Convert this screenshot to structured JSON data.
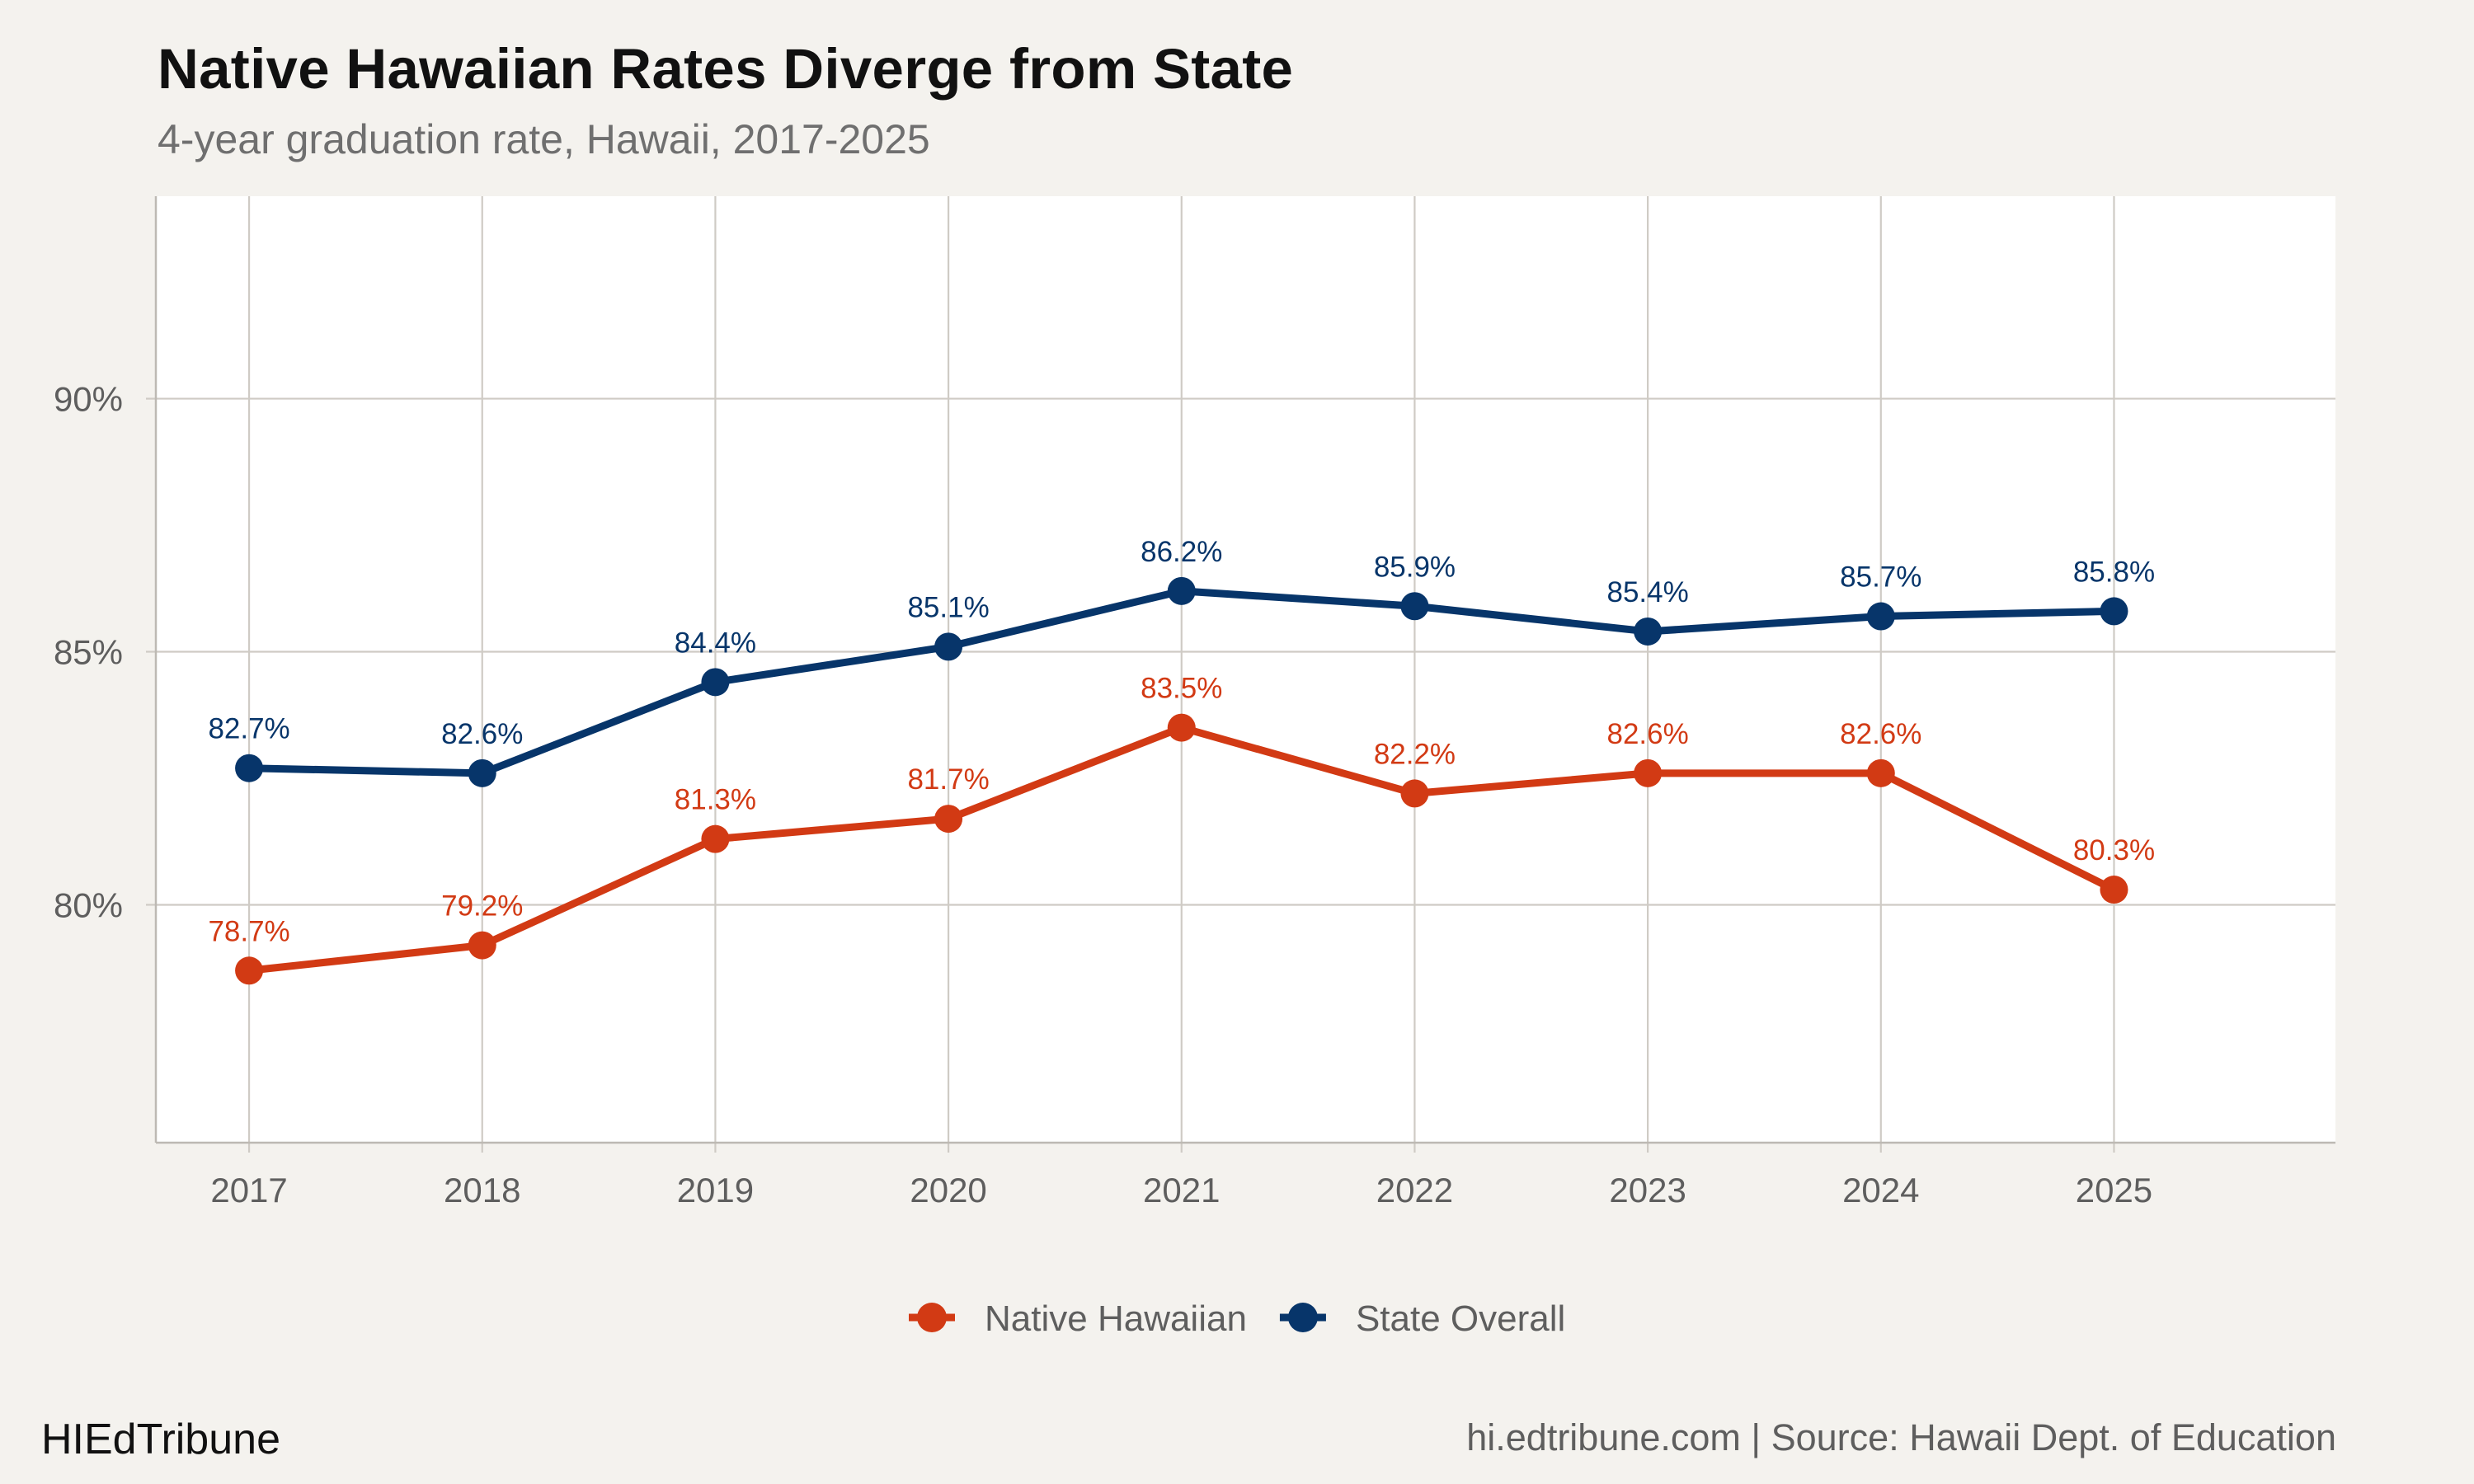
{
  "title": "Native Hawaiian Rates Diverge from State",
  "subtitle": "4-year graduation rate, Hawaii, 2017-2025",
  "brand": "HIEdTribune",
  "source": "hi.edtribune.com | Source: Hawaii Dept. of Education",
  "colors": {
    "background": "#f4f2ee",
    "panel": "#ffffff",
    "grid": "#cfcbc5",
    "native_hawaiian": "#d23a14",
    "state_overall": "#07356a"
  },
  "chart_data": {
    "type": "line",
    "x": [
      "2017",
      "2018",
      "2019",
      "2020",
      "2021",
      "2022",
      "2023",
      "2024",
      "2025"
    ],
    "xlim": [
      2016.6,
      2025.95
    ],
    "ylim": [
      75.3,
      94
    ],
    "yticks": [
      80,
      85,
      90
    ],
    "ytick_labels": [
      "80%",
      "85%",
      "90%"
    ],
    "grid": true,
    "legend_position": "bottom",
    "series": [
      {
        "name": "Native Hawaiian",
        "color": "#d23a14",
        "values": [
          78.7,
          79.2,
          81.3,
          81.7,
          83.5,
          82.2,
          82.6,
          82.6,
          80.3
        ],
        "labels": [
          "78.7%",
          "79.2%",
          "81.3%",
          "81.7%",
          "83.5%",
          "82.2%",
          "82.6%",
          "82.6%",
          "80.3%"
        ]
      },
      {
        "name": "State Overall",
        "color": "#07356a",
        "values": [
          82.7,
          82.6,
          84.4,
          85.1,
          86.2,
          85.9,
          85.4,
          85.7,
          85.8
        ],
        "labels": [
          "82.7%",
          "82.6%",
          "84.4%",
          "85.1%",
          "86.2%",
          "85.9%",
          "85.4%",
          "85.7%",
          "85.8%"
        ]
      }
    ]
  }
}
